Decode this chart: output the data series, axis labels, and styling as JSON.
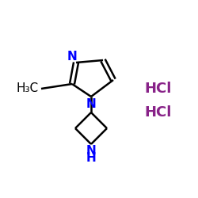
{
  "background_color": "#ffffff",
  "bond_color": "#000000",
  "N_color": "#0000ff",
  "HCl_color": "#882288",
  "CH3_color": "#000000",
  "bond_width": 1.8,
  "HCl1_text": "HCl",
  "HCl2_text": "HCl",
  "H3C_text": "H₃C",
  "N_label": "N",
  "NH_label": "N",
  "H_label": "H"
}
